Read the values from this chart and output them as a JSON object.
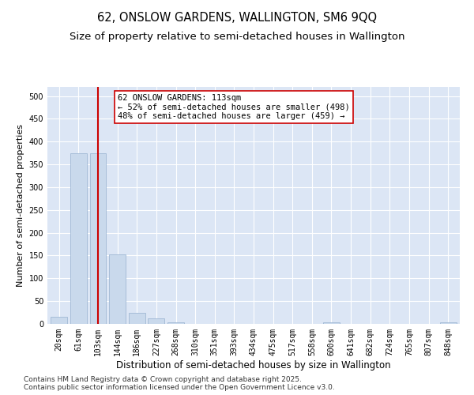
{
  "title": "62, ONSLOW GARDENS, WALLINGTON, SM6 9QQ",
  "subtitle": "Size of property relative to semi-detached houses in Wallington",
  "xlabel": "Distribution of semi-detached houses by size in Wallington",
  "ylabel": "Number of semi-detached properties",
  "categories": [
    "20sqm",
    "61sqm",
    "103sqm",
    "144sqm",
    "186sqm",
    "227sqm",
    "268sqm",
    "310sqm",
    "351sqm",
    "393sqm",
    "434sqm",
    "475sqm",
    "517sqm",
    "558sqm",
    "600sqm",
    "641sqm",
    "682sqm",
    "724sqm",
    "765sqm",
    "807sqm",
    "848sqm"
  ],
  "values": [
    15,
    375,
    375,
    153,
    24,
    12,
    3,
    0,
    0,
    0,
    0,
    0,
    0,
    0,
    4,
    0,
    0,
    0,
    0,
    0,
    3
  ],
  "bar_color": "#c9d9ec",
  "bar_edge_color": "#a0b8d4",
  "vline_x": 2,
  "vline_color": "#cc0000",
  "annotation_line1": "62 ONSLOW GARDENS: 113sqm",
  "annotation_line2": "← 52% of semi-detached houses are smaller (498)",
  "annotation_line3": "48% of semi-detached houses are larger (459) →",
  "annotation_box_color": "#ffffff",
  "annotation_box_edge": "#cc0000",
  "ylim": [
    0,
    520
  ],
  "yticks": [
    0,
    50,
    100,
    150,
    200,
    250,
    300,
    350,
    400,
    450,
    500
  ],
  "plot_background": "#dce6f5",
  "footer": "Contains HM Land Registry data © Crown copyright and database right 2025.\nContains public sector information licensed under the Open Government Licence v3.0.",
  "title_fontsize": 10.5,
  "subtitle_fontsize": 9.5,
  "xlabel_fontsize": 8.5,
  "ylabel_fontsize": 8,
  "tick_fontsize": 7,
  "annotation_fontsize": 7.5,
  "footer_fontsize": 6.5
}
